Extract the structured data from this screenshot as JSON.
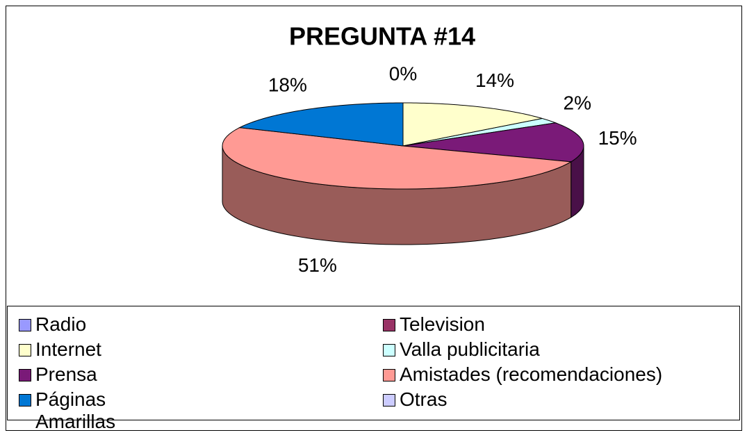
{
  "chart_data": {
    "type": "pie3d",
    "title": "PREGUNTA #14",
    "categories": [
      "Radio",
      "Television",
      "Internet",
      "Valla publicitaria",
      "Prensa",
      "Amistades (recomendaciones)",
      "Páginas Amarillas",
      "Otras"
    ],
    "values": [
      0,
      0,
      14,
      2,
      15,
      51,
      18,
      0
    ],
    "value_labels": [
      "0%",
      null,
      "14%",
      "2%",
      "15%",
      "51%",
      "18%",
      null
    ],
    "colors": [
      "#9999ff",
      "#993366",
      "#ffffcc",
      "#ccffff",
      "#7a1a78",
      "#ff9a94",
      "#0077d4",
      "#ccccff"
    ],
    "legend": "bottom"
  }
}
